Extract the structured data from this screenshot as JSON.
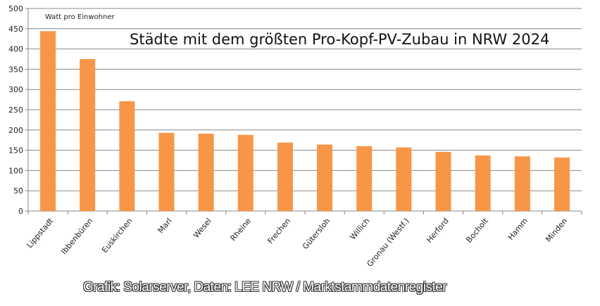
{
  "chart_data": {
    "type": "bar",
    "title": "Städte mit dem größten Pro-Kopf-PV-Zubau in NRW 2024",
    "ylabel": "Watt pro Einwohner",
    "xlabel": "",
    "categories": [
      "Lippstadt",
      "Ibbenbüren",
      "Euskirchen",
      "Marl",
      "Wesel",
      "Rheine",
      "Frechen",
      "Gütersloh",
      "Willich",
      "Gronau (Westf.)",
      "Herford",
      "Bocholt",
      "Hamm",
      "Minden"
    ],
    "values": [
      444,
      375,
      271,
      193,
      191,
      188,
      169,
      164,
      160,
      157,
      146,
      137,
      135,
      132
    ],
    "ylim": [
      0,
      500
    ],
    "yticks": [
      0,
      50,
      100,
      150,
      200,
      250,
      300,
      350,
      400,
      450,
      500
    ],
    "grid": true,
    "bar_color": "#F79646",
    "credit": "Grafik: Solarserver, Daten: LEE NRW / Marktstammdatenregister"
  }
}
